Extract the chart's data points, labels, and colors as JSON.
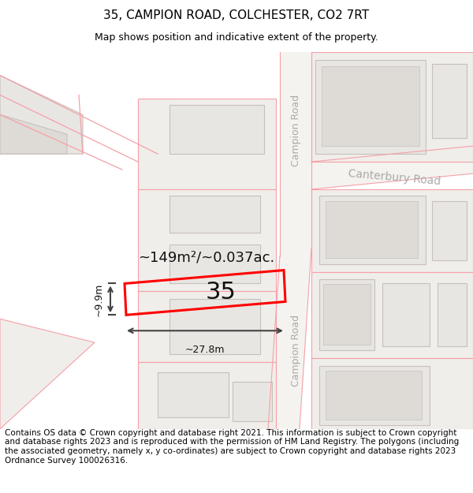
{
  "title": "35, CAMPION ROAD, COLCHESTER, CO2 7RT",
  "subtitle": "Map shows position and indicative extent of the property.",
  "footer": "Contains OS data © Crown copyright and database right 2021. This information is subject to Crown copyright and database rights 2023 and is reproduced with the permission of HM Land Registry. The polygons (including the associated geometry, namely x, y co-ordinates) are subject to Crown copyright and database rights 2023 Ordnance Survey 100026316.",
  "area_text": "~149m²/~0.037ac.",
  "width_text": "~27.8m",
  "height_text": "~9.9m",
  "number_text": "35",
  "campion_road_label": "Campion Road",
  "canterbury_road_label": "Canterbury Road",
  "highlight_color": "#ff0000",
  "dim_color": "#444444",
  "pink": "#f5a0a8",
  "building_fill": "#e8e6e2",
  "building_fill2": "#dedbd6",
  "road_fill": "#ffffff",
  "map_bg": "#f2f0ec",
  "title_fontsize": 11,
  "subtitle_fontsize": 9,
  "footer_fontsize": 7.5
}
